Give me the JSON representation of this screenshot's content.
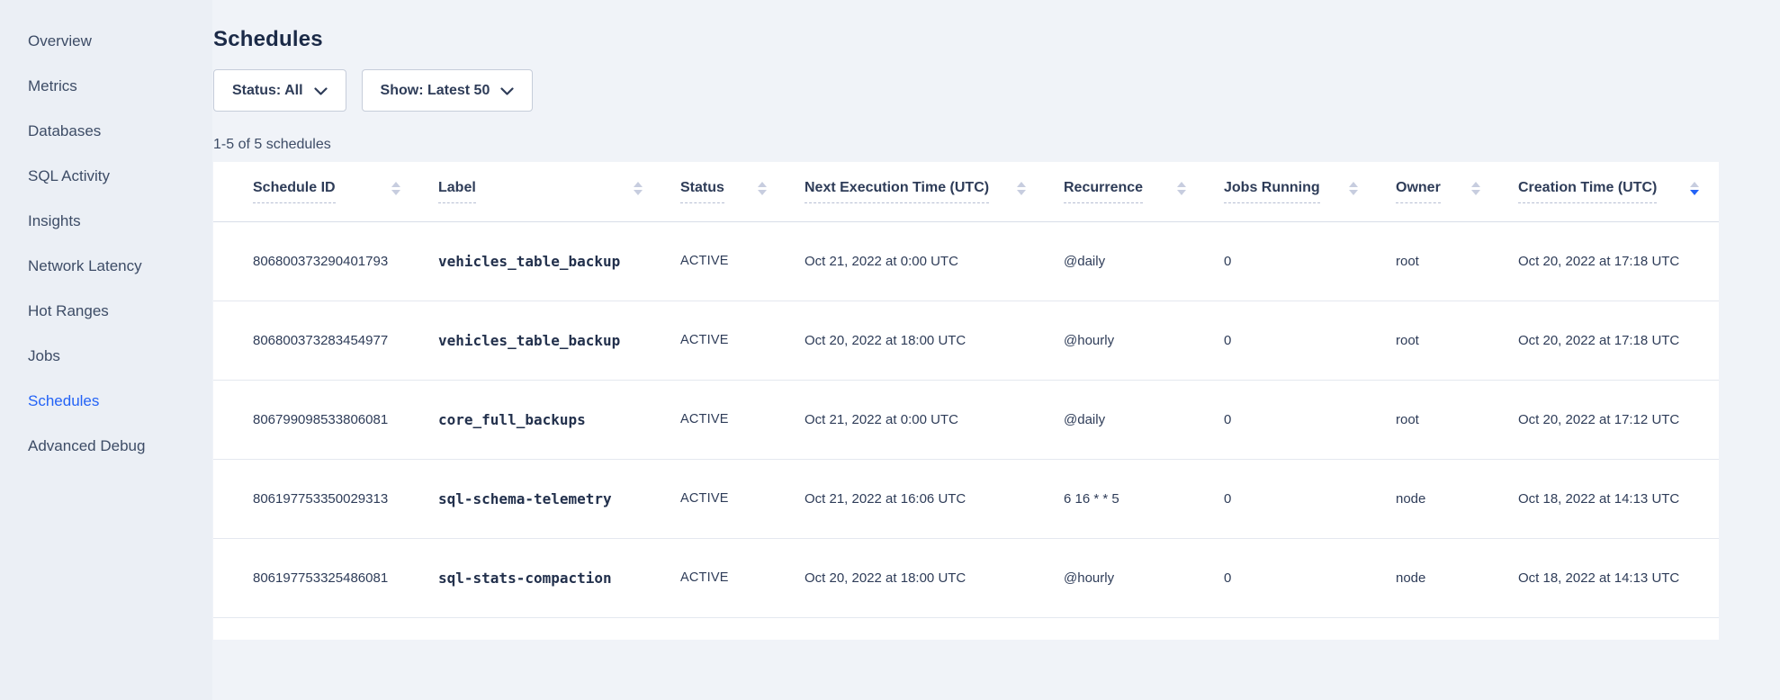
{
  "sidebar": {
    "items": [
      {
        "label": "Overview",
        "active": false
      },
      {
        "label": "Metrics",
        "active": false
      },
      {
        "label": "Databases",
        "active": false
      },
      {
        "label": "SQL Activity",
        "active": false
      },
      {
        "label": "Insights",
        "active": false
      },
      {
        "label": "Network Latency",
        "active": false
      },
      {
        "label": "Hot Ranges",
        "active": false
      },
      {
        "label": "Jobs",
        "active": false
      },
      {
        "label": "Schedules",
        "active": true
      },
      {
        "label": "Advanced Debug",
        "active": false
      }
    ]
  },
  "header": {
    "title": "Schedules"
  },
  "filters": {
    "status_label": "Status: All",
    "show_label": "Show: Latest 50"
  },
  "results_count": "1-5 of 5 schedules",
  "table": {
    "columns": [
      {
        "label": "Schedule ID",
        "sort": "none"
      },
      {
        "label": "Label",
        "sort": "none"
      },
      {
        "label": "Status",
        "sort": "none"
      },
      {
        "label": "Next Execution Time (UTC)",
        "sort": "none"
      },
      {
        "label": "Recurrence",
        "sort": "none"
      },
      {
        "label": "Jobs Running",
        "sort": "none"
      },
      {
        "label": "Owner",
        "sort": "none"
      },
      {
        "label": "Creation Time (UTC)",
        "sort": "desc"
      }
    ],
    "rows": [
      {
        "schedule_id": "806800373290401793",
        "label": "vehicles_table_backup",
        "status": "ACTIVE",
        "next_execution": "Oct 21, 2022 at 0:00 UTC",
        "recurrence": "@daily",
        "jobs_running": "0",
        "owner": "root",
        "creation_time": "Oct 20, 2022 at 17:18 UTC"
      },
      {
        "schedule_id": "806800373283454977",
        "label": "vehicles_table_backup",
        "status": "ACTIVE",
        "next_execution": "Oct 20, 2022 at 18:00 UTC",
        "recurrence": "@hourly",
        "jobs_running": "0",
        "owner": "root",
        "creation_time": "Oct 20, 2022 at 17:18 UTC"
      },
      {
        "schedule_id": "806799098533806081",
        "label": "core_full_backups",
        "status": "ACTIVE",
        "next_execution": "Oct 21, 2022 at 0:00 UTC",
        "recurrence": "@daily",
        "jobs_running": "0",
        "owner": "root",
        "creation_time": "Oct 20, 2022 at 17:12 UTC"
      },
      {
        "schedule_id": "806197753350029313",
        "label": "sql-schema-telemetry",
        "status": "ACTIVE",
        "next_execution": "Oct 21, 2022 at 16:06 UTC",
        "recurrence": "6 16 * * 5",
        "jobs_running": "0",
        "owner": "node",
        "creation_time": "Oct 18, 2022 at 14:13 UTC"
      },
      {
        "schedule_id": "806197753325486081",
        "label": "sql-stats-compaction",
        "status": "ACTIVE",
        "next_execution": "Oct 20, 2022 at 18:00 UTC",
        "recurrence": "@hourly",
        "jobs_running": "0",
        "owner": "node",
        "creation_time": "Oct 18, 2022 at 14:13 UTC"
      }
    ]
  },
  "colors": {
    "accent_blue": "#2463f6",
    "page_background": "#f0f3f8",
    "sidebar_background": "#ebeff5",
    "card_background": "#ffffff",
    "text_dark": "#1b2a47",
    "text_body": "#2e3c58",
    "sort_icon_inactive": "#c7cddf",
    "row_divider": "#e4e8ef"
  }
}
